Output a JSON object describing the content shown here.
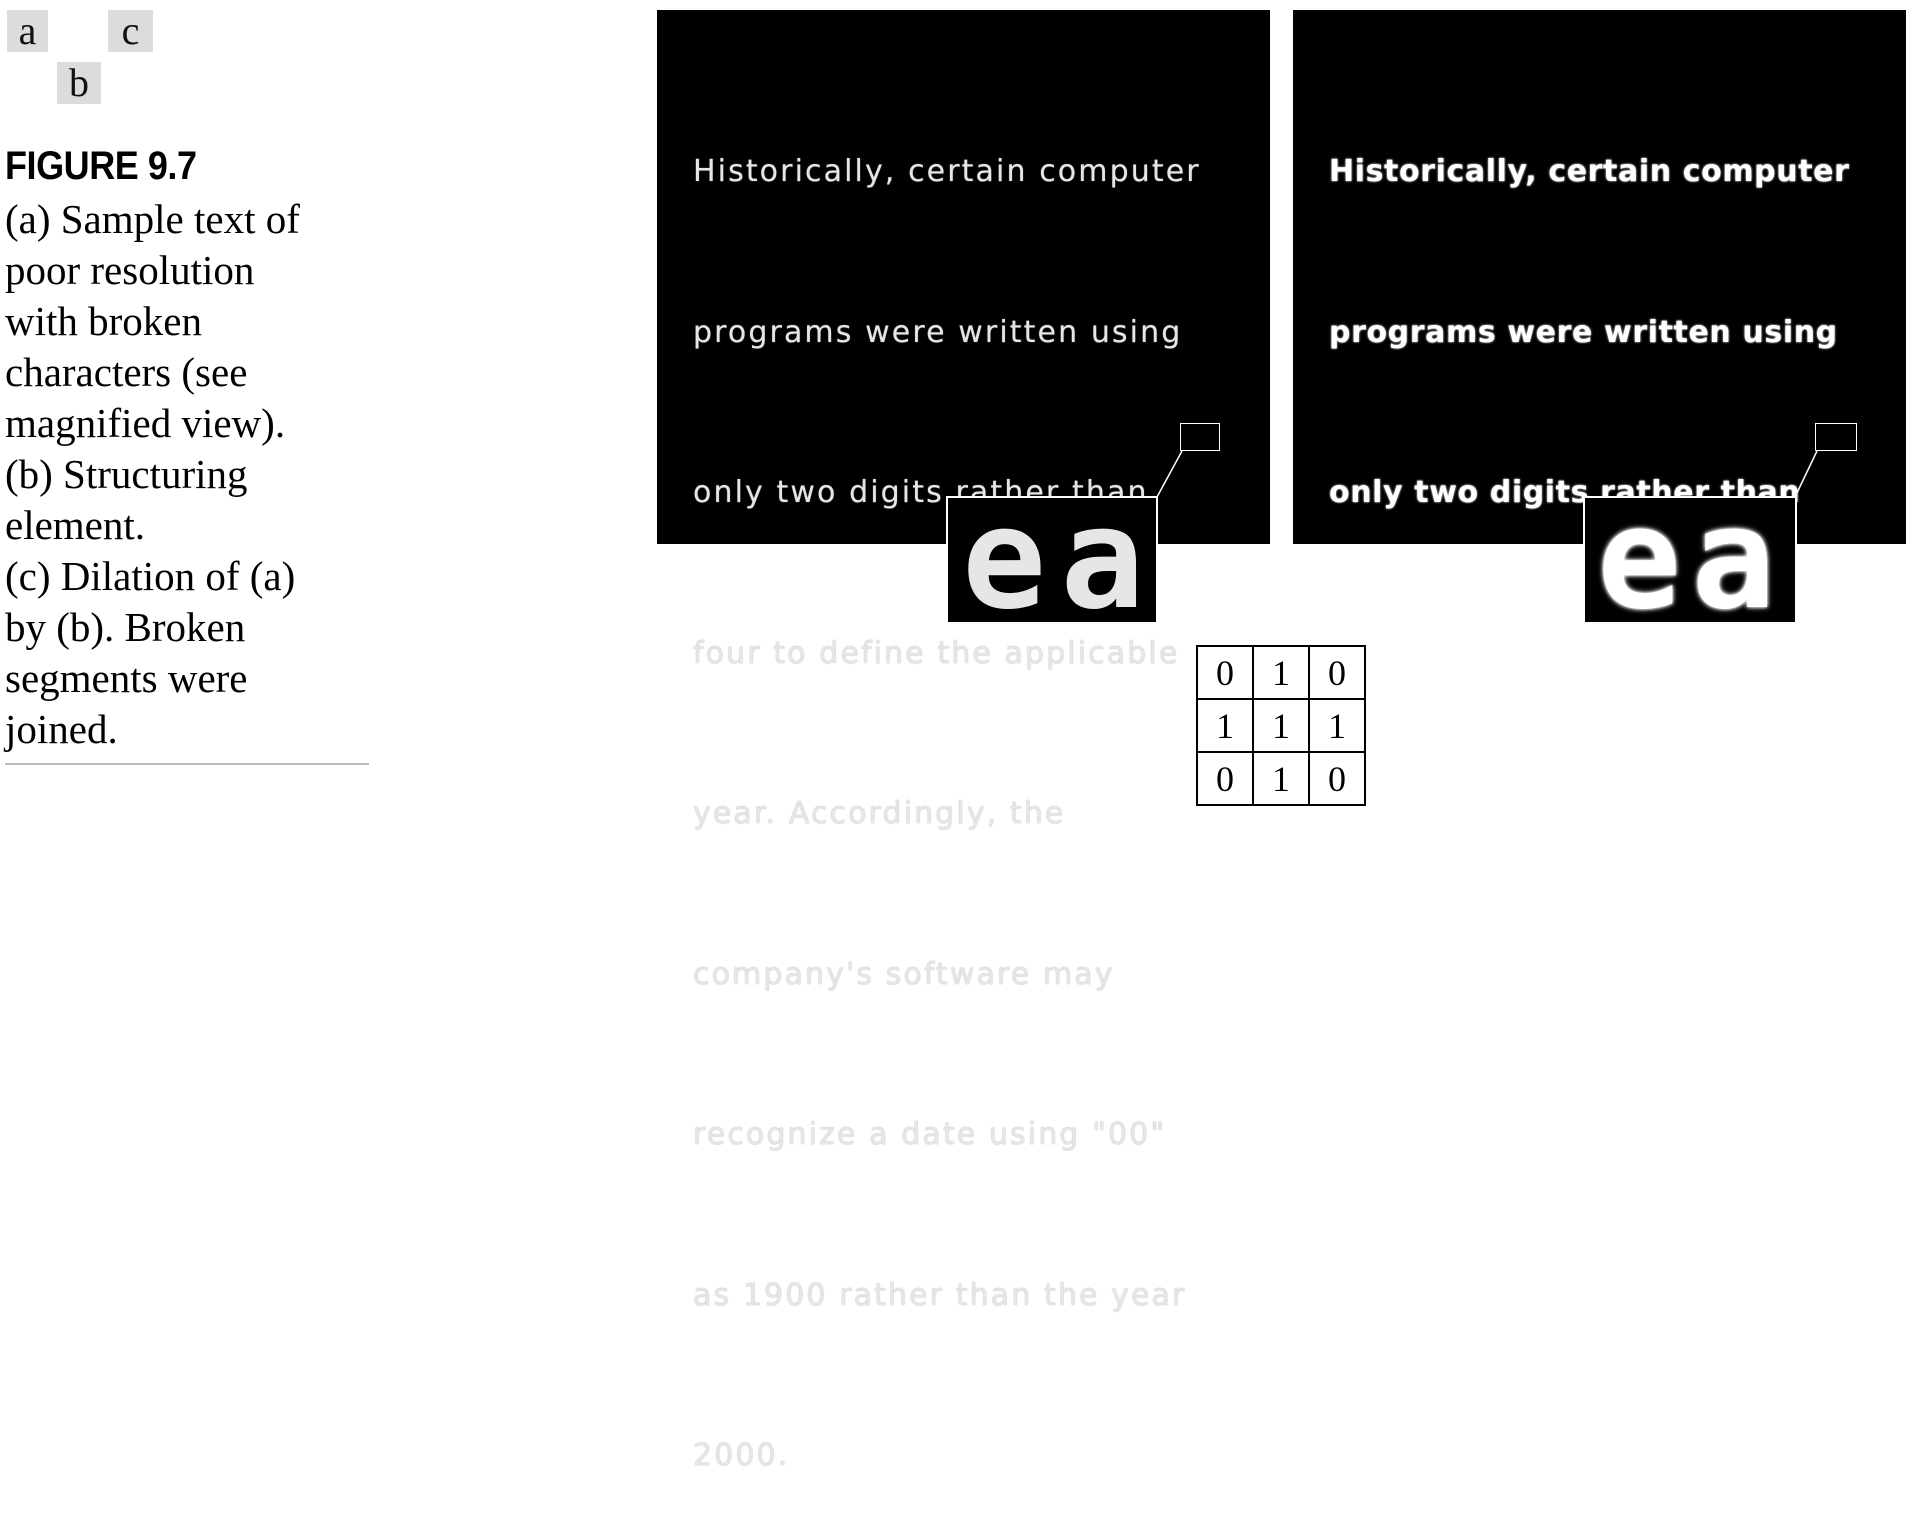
{
  "figure": {
    "panel_keys": {
      "a": "a",
      "b": "b",
      "c": "c"
    },
    "number": "FIGURE 9.7",
    "caption_lines": [
      "(a) Sample text of",
      "poor resolution",
      "with broken",
      "characters (see",
      "magnified view).",
      "(b) Structuring",
      "element.",
      "(c) Dilation of (a)",
      "by (b). Broken",
      "segments were",
      "joined."
    ]
  },
  "sample_text": {
    "lines": [
      "Historically, certain computer",
      "programs were written using",
      "only two digits rather than",
      "four to define the applicable",
      "year. Accordingly, the",
      "company's software may",
      "recognize a date using \"00\"",
      "as 1900 rather than the year",
      "2000."
    ],
    "magnified": "ea"
  },
  "structuring_element": {
    "rows": [
      [
        "0",
        "1",
        "0"
      ],
      [
        "1",
        "1",
        "1"
      ],
      [
        "0",
        "1",
        "0"
      ]
    ]
  },
  "colors": {
    "panel_bg": "#000000",
    "key_bg": "#dcdcdc",
    "rule": "#bbbbbb"
  }
}
